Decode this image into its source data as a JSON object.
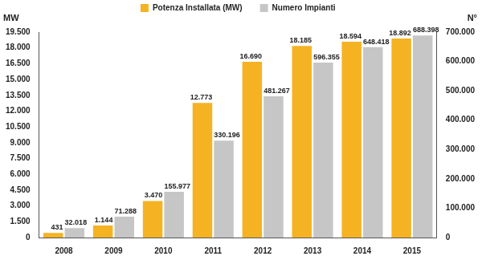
{
  "chart_data": {
    "type": "bar",
    "categories": [
      "2008",
      "2009",
      "2010",
      "2011",
      "2012",
      "2013",
      "2014",
      "2015"
    ],
    "series": [
      {
        "name": "Potenza Installata (MW)",
        "color": "#f5b323",
        "values": [
          431,
          1144,
          3470,
          12773,
          16690,
          18185,
          18594,
          18892
        ],
        "value_labels": [
          "431",
          "1.144",
          "3.470",
          "12.773",
          "16.690",
          "18.185",
          "18.594",
          "18.892"
        ]
      },
      {
        "name": "Numero Impianti",
        "color": "#c6c6c6",
        "axis": "y2",
        "values": [
          32018,
          71288,
          155977,
          330196,
          481267,
          596355,
          648418,
          688398
        ],
        "value_labels": [
          "32.018",
          "71.288",
          "155.977",
          "330.196",
          "481.267",
          "596.355",
          "648.418",
          "688.398"
        ]
      }
    ],
    "ylabel": "MW",
    "y2label": "N°",
    "ylim": [
      0,
      19500
    ],
    "yticks": [
      0,
      {
        "value": 1500,
        "label": "1.500"
      },
      {
        "value": 3000,
        "label": "3.000"
      },
      {
        "value": 4500,
        "label": "4.500"
      },
      {
        "value": 6000,
        "label": "6.000"
      },
      {
        "value": 7500,
        "label": "7.500"
      },
      {
        "value": 9000,
        "label": "9.000"
      },
      {
        "value": 10500,
        "label": "10.500"
      },
      {
        "value": 12000,
        "label": "12.000"
      },
      {
        "value": 13500,
        "label": "13.500"
      },
      {
        "value": 15000,
        "label": "15.000"
      },
      {
        "value": 16500,
        "label": "16.500"
      },
      {
        "value": 18000,
        "label": "18.000"
      },
      {
        "value": 19500,
        "label": "19.500"
      }
    ],
    "y2lim": [
      0,
      700000
    ],
    "y2ticks": [
      0,
      {
        "value": 100000,
        "label": "100.000"
      },
      {
        "value": 200000,
        "label": "200.000"
      },
      {
        "value": 300000,
        "label": "300.000"
      },
      {
        "value": 400000,
        "label": "400.000"
      },
      {
        "value": 500000,
        "label": "500.000"
      },
      {
        "value": 600000,
        "label": "600.000"
      },
      {
        "value": 700000,
        "label": "700.000"
      }
    ],
    "grid": false,
    "legend": "top",
    "data_labels": true
  }
}
